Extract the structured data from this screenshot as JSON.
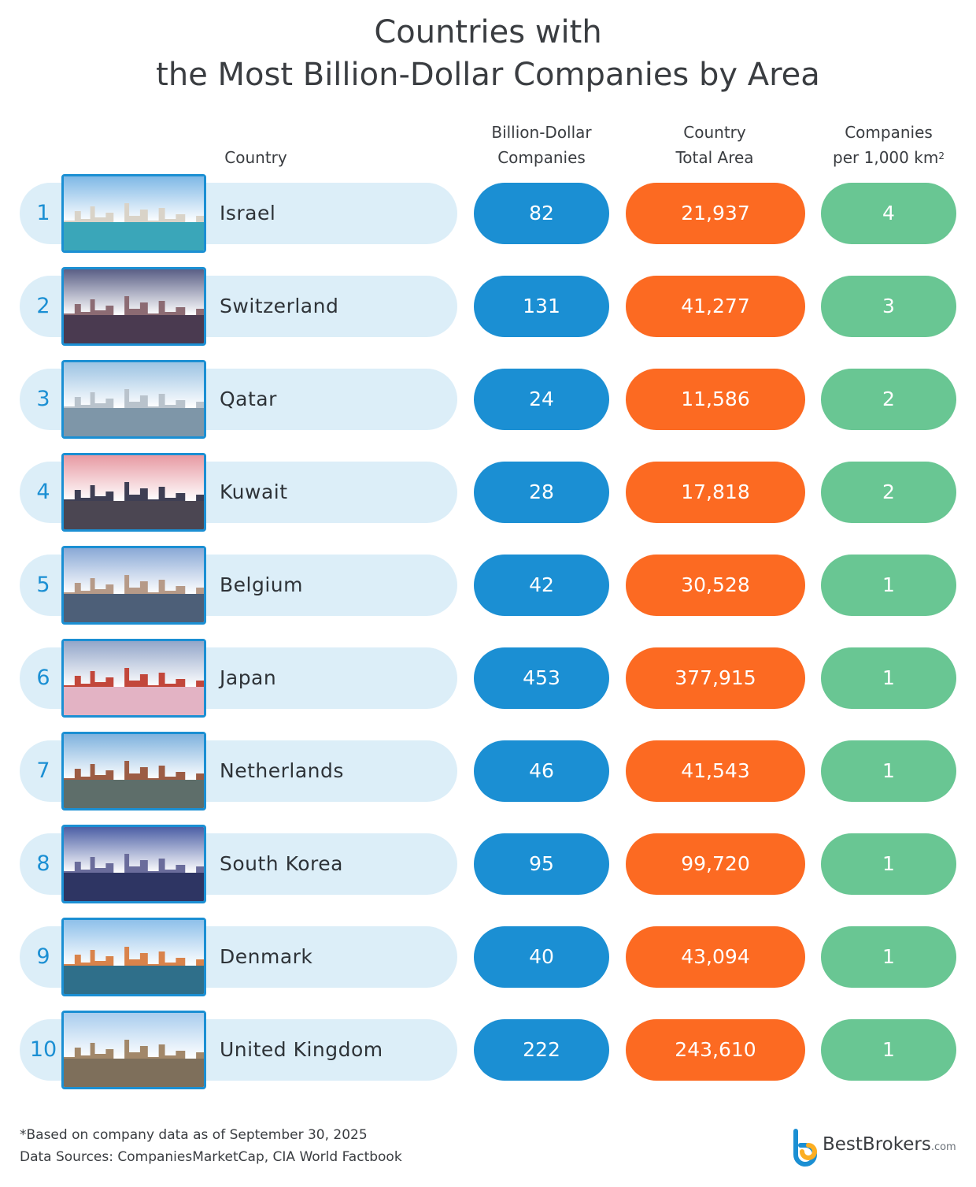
{
  "chart_data": {
    "type": "table",
    "title_line1": "Countries with",
    "title_line2": "the Most Billion-Dollar Companies by Area",
    "columns": {
      "country": "Country",
      "companies_line1": "Billion-Dollar",
      "companies_line2": "Companies",
      "area_line1": "Country",
      "area_line2": "Total Area",
      "density_line1": "Companies",
      "density_line2": "per 1,000 km",
      "density_sup": "2"
    },
    "rows": [
      {
        "rank": "1",
        "country": "Israel",
        "companies": "82",
        "area": "21,937",
        "per_1000_km2": "4"
      },
      {
        "rank": "2",
        "country": "Switzerland",
        "companies": "131",
        "area": "41,277",
        "per_1000_km2": "3"
      },
      {
        "rank": "3",
        "country": "Qatar",
        "companies": "24",
        "area": "11,586",
        "per_1000_km2": "2"
      },
      {
        "rank": "4",
        "country": "Kuwait",
        "companies": "28",
        "area": "17,818",
        "per_1000_km2": "2"
      },
      {
        "rank": "5",
        "country": "Belgium",
        "companies": "42",
        "area": "30,528",
        "per_1000_km2": "1"
      },
      {
        "rank": "6",
        "country": "Japan",
        "companies": "453",
        "area": "377,915",
        "per_1000_km2": "1"
      },
      {
        "rank": "7",
        "country": "Netherlands",
        "companies": "46",
        "area": "41,543",
        "per_1000_km2": "1"
      },
      {
        "rank": "8",
        "country": "South Korea",
        "companies": "95",
        "area": "99,720",
        "per_1000_km2": "1"
      },
      {
        "rank": "9",
        "country": "Denmark",
        "companies": "40",
        "area": "43,094",
        "per_1000_km2": "1"
      },
      {
        "rank": "10",
        "country": "United Kingdom",
        "companies": "222",
        "area": "243,610",
        "per_1000_km2": "1"
      }
    ],
    "footnote": "*Based on company data as of September 30, 2025",
    "sources": "Data Sources: CompaniesMarketCap, CIA World Factbook"
  },
  "logo": {
    "brand": "BestBrokers",
    "suffix": ".com",
    "icon": "bestbrokers-logo-icon"
  },
  "colors": {
    "blue": "#1b8fd3",
    "orange": "#fc6a22",
    "green": "#69c693",
    "pill": "#dceef8"
  },
  "thumbnails": [
    {
      "icon": "tel-aviv-beach-photo",
      "sky": "#7fb8e6",
      "ground": "#3aa6b9",
      "sil": "#d9d3c8"
    },
    {
      "icon": "switzerland-town-photo",
      "sky": "#5a5f86",
      "ground": "#4a3a50",
      "sil": "#8c6b73"
    },
    {
      "icon": "doha-skyline-photo",
      "sky": "#9cc3e3",
      "ground": "#7e96a8",
      "sil": "#b9c3cc"
    },
    {
      "icon": "kuwait-towers-photo",
      "sky": "#e79aa3",
      "ground": "#4b4652",
      "sil": "#3e3f54"
    },
    {
      "icon": "ghent-canal-photo",
      "sky": "#8aa9d6",
      "ground": "#4d5f78",
      "sil": "#b69a88"
    },
    {
      "icon": "fuji-pagoda-photo",
      "sky": "#93a6c9",
      "ground": "#e3b3c4",
      "sil": "#c2473b"
    },
    {
      "icon": "amsterdam-canal-photo",
      "sky": "#7fb2de",
      "ground": "#5e6e6a",
      "sil": "#9c5c44"
    },
    {
      "icon": "seoul-skyline-photo",
      "sky": "#4c5fa5",
      "ground": "#2e3563",
      "sil": "#6a6c9b"
    },
    {
      "icon": "nyhavn-harbor-photo",
      "sky": "#8ec0ea",
      "ground": "#2f6f8a",
      "sil": "#d9834b"
    },
    {
      "icon": "big-ben-photo",
      "sky": "#a9cdee",
      "ground": "#7e6f5b",
      "sil": "#a2886a"
    }
  ]
}
